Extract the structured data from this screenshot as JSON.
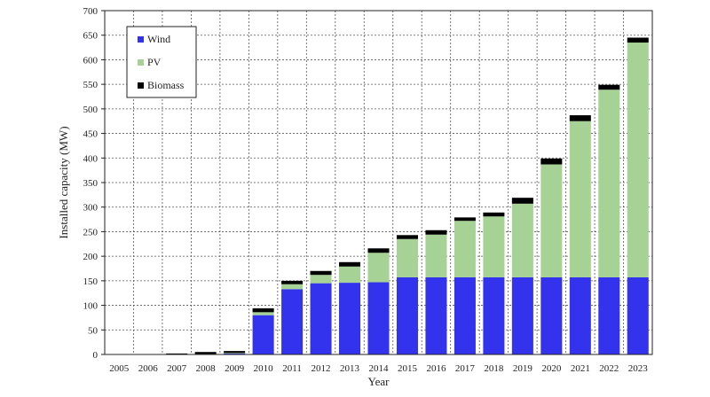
{
  "chart_data": {
    "type": "bar",
    "stacked": true,
    "title": "",
    "xlabel": "Year",
    "ylabel": "Installed capacity (MW)",
    "ylim": [
      0,
      700
    ],
    "yticks": [
      0,
      50,
      100,
      150,
      200,
      250,
      300,
      350,
      400,
      450,
      500,
      550,
      600,
      650,
      700
    ],
    "grid": true,
    "legend_position": "top-left",
    "categories": [
      "2005",
      "2006",
      "2007",
      "2008",
      "2009",
      "2010",
      "2011",
      "2012",
      "2013",
      "2014",
      "2015",
      "2016",
      "2017",
      "2018",
      "2019",
      "2020",
      "2021",
      "2022",
      "2023"
    ],
    "series": [
      {
        "name": "Wind",
        "color": "#3333ee",
        "values": [
          0,
          0,
          0,
          0,
          2,
          80,
          133,
          145,
          146,
          147,
          157,
          157,
          157,
          157,
          157,
          157,
          157,
          157,
          157
        ]
      },
      {
        "name": "PV",
        "color": "#a6d395",
        "values": [
          0,
          0,
          0,
          1,
          1,
          6,
          10,
          17,
          33,
          60,
          78,
          87,
          115,
          124,
          150,
          230,
          318,
          382,
          478
        ]
      },
      {
        "name": "Biomass",
        "color": "#000000",
        "values": [
          0,
          0,
          2,
          4,
          4,
          8,
          7,
          8,
          9,
          9,
          8,
          9,
          7,
          8,
          12,
          12,
          12,
          10,
          10
        ]
      }
    ]
  }
}
